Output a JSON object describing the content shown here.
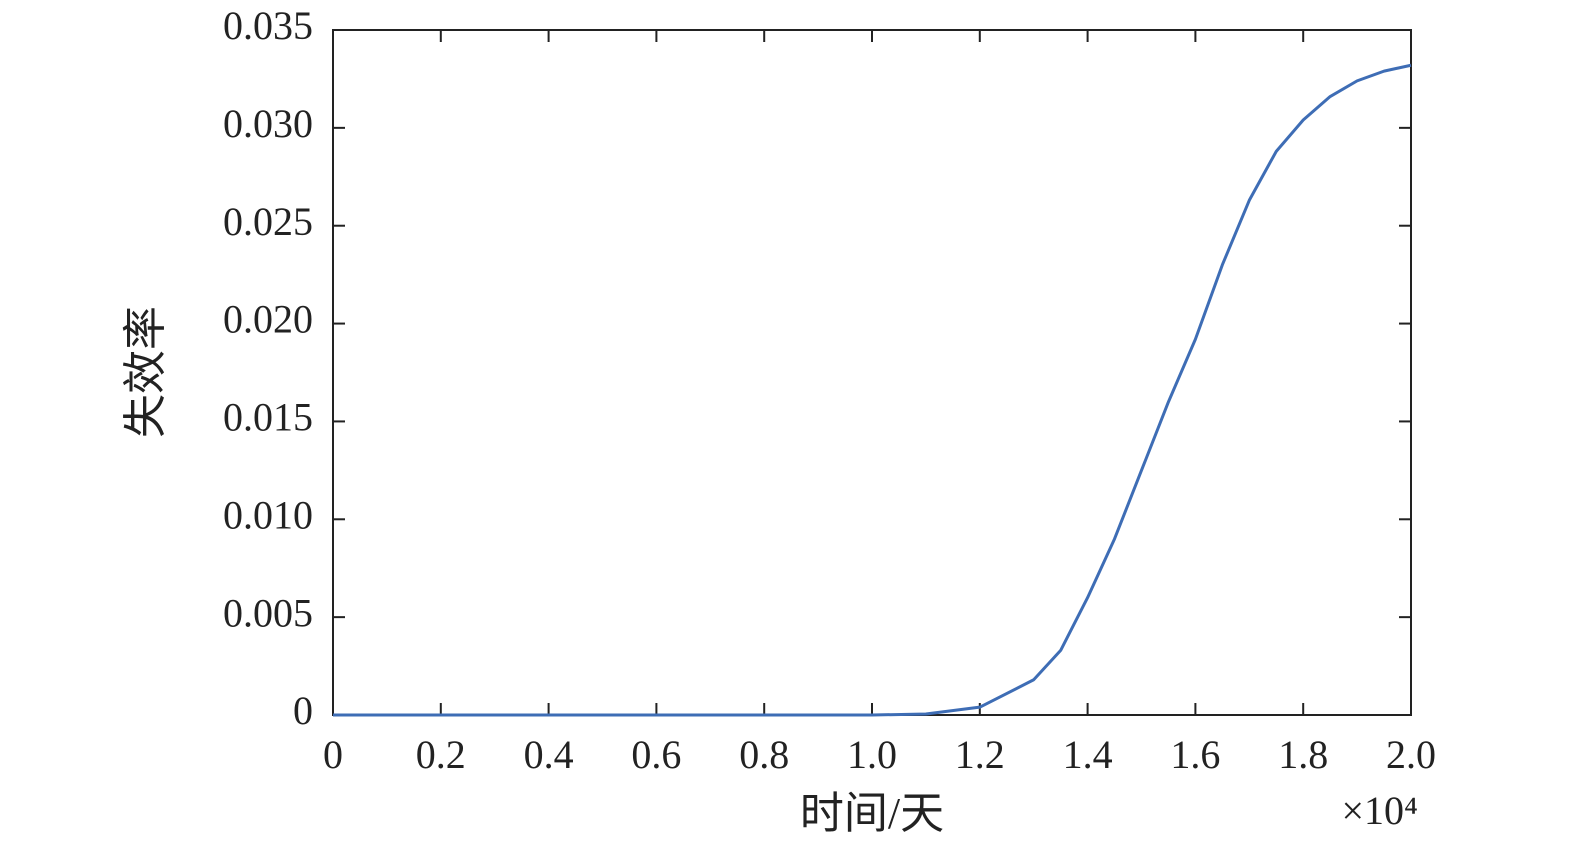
{
  "chart_data": {
    "type": "line",
    "x_label": "时间/天",
    "y_label": "失效率",
    "x_multiplier": "×10⁴",
    "x": [
      0,
      0.2,
      0.4,
      0.6,
      0.8,
      1.0,
      1.1,
      1.2,
      1.3,
      1.35,
      1.4,
      1.45,
      1.5,
      1.55,
      1.6,
      1.65,
      1.7,
      1.75,
      1.8,
      1.85,
      1.9,
      1.95,
      2.0
    ],
    "series": [
      {
        "color": "#3e6db5",
        "values": [
          0,
          0,
          0,
          0,
          0,
          0,
          5e-05,
          0.0004,
          0.0018,
          0.0033,
          0.006,
          0.009,
          0.0125,
          0.016,
          0.0192,
          0.023,
          0.0263,
          0.0288,
          0.0304,
          0.0316,
          0.0324,
          0.0329,
          0.0332
        ]
      }
    ],
    "xlim": [
      0,
      2.0
    ],
    "xticks": [
      0,
      0.2,
      0.4,
      0.6,
      0.8,
      {
        "value": 1,
        "label": "1.0"
      },
      1.2,
      1.4,
      1.6,
      1.8,
      {
        "value": 2,
        "label": "2.0"
      }
    ],
    "ylim": [
      0,
      0.035
    ],
    "yticks": [
      0,
      0.005,
      {
        "value": 0.01,
        "label": "0.010"
      },
      0.015,
      {
        "value": 0.02,
        "label": "0.020"
      },
      0.025,
      {
        "value": 0.03,
        "label": "0.030"
      },
      0.035
    ],
    "grid": false
  }
}
